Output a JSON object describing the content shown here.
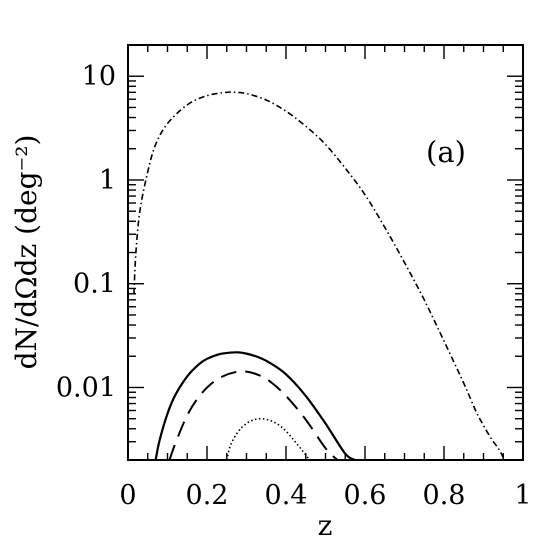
{
  "chart_data": {
    "type": "line",
    "panel_label": "(a)",
    "xlabel": "z",
    "ylabel": "dN/dΩdz (deg⁻²)",
    "xlim": [
      0,
      1
    ],
    "ylim": [
      0.002,
      20
    ],
    "yscale": "log",
    "grid": false,
    "legend": "none",
    "x_ticks": [
      {
        "value": 0,
        "label": "0"
      },
      {
        "value": 0.2,
        "label": "0.2"
      },
      {
        "value": 0.4,
        "label": "0.4"
      },
      {
        "value": 0.6,
        "label": "0.6"
      },
      {
        "value": 0.8,
        "label": "0.8"
      },
      {
        "value": 1,
        "label": "1"
      }
    ],
    "y_ticks": [
      {
        "value": 0.01,
        "label": "0.01"
      },
      {
        "value": 0.1,
        "label": "0.1"
      },
      {
        "value": 1,
        "label": "1"
      },
      {
        "value": 10,
        "label": "10"
      }
    ],
    "series": [
      {
        "style": "dash-dot",
        "x": [
          0.015,
          0.02,
          0.03,
          0.05,
          0.07,
          0.1,
          0.15,
          0.2,
          0.25,
          0.27,
          0.3,
          0.35,
          0.4,
          0.45,
          0.5,
          0.55,
          0.6,
          0.65,
          0.7,
          0.75,
          0.8,
          0.85,
          0.88,
          0.9,
          0.92,
          0.94,
          0.953
        ],
        "y": [
          0.08,
          0.2,
          0.5,
          1.2,
          2.2,
          3.5,
          5.3,
          6.5,
          7.0,
          7.0,
          6.8,
          5.9,
          4.6,
          3.3,
          2.2,
          1.3,
          0.72,
          0.35,
          0.16,
          0.07,
          0.028,
          0.011,
          0.006,
          0.0043,
          0.0032,
          0.0025,
          0.002
        ]
      },
      {
        "style": "solid",
        "x": [
          0.07,
          0.08,
          0.1,
          0.12,
          0.15,
          0.18,
          0.2,
          0.23,
          0.26,
          0.28,
          0.3,
          0.33,
          0.36,
          0.4,
          0.45,
          0.5,
          0.55,
          0.575
        ],
        "y": [
          0.002,
          0.0031,
          0.0056,
          0.0085,
          0.0128,
          0.0168,
          0.0189,
          0.0209,
          0.0217,
          0.0218,
          0.0212,
          0.0196,
          0.0172,
          0.0134,
          0.0083,
          0.0045,
          0.0023,
          0.002
        ]
      },
      {
        "style": "dashed",
        "x": [
          0.105,
          0.12,
          0.15,
          0.18,
          0.21,
          0.24,
          0.27,
          0.3,
          0.33,
          0.36,
          0.4,
          0.45,
          0.5,
          0.53
        ],
        "y": [
          0.002,
          0.0029,
          0.0054,
          0.0082,
          0.0108,
          0.0128,
          0.014,
          0.0142,
          0.0132,
          0.0114,
          0.0083,
          0.0049,
          0.0026,
          0.002
        ]
      },
      {
        "style": "dotted",
        "x": [
          0.25,
          0.26,
          0.28,
          0.3,
          0.32,
          0.34,
          0.36,
          0.38,
          0.4,
          0.42,
          0.44,
          0.46,
          0.47
        ],
        "y": [
          0.002,
          0.0028,
          0.0038,
          0.0045,
          0.0049,
          0.005,
          0.0048,
          0.0044,
          0.0038,
          0.0031,
          0.0025,
          0.002,
          0.0018
        ]
      }
    ]
  }
}
